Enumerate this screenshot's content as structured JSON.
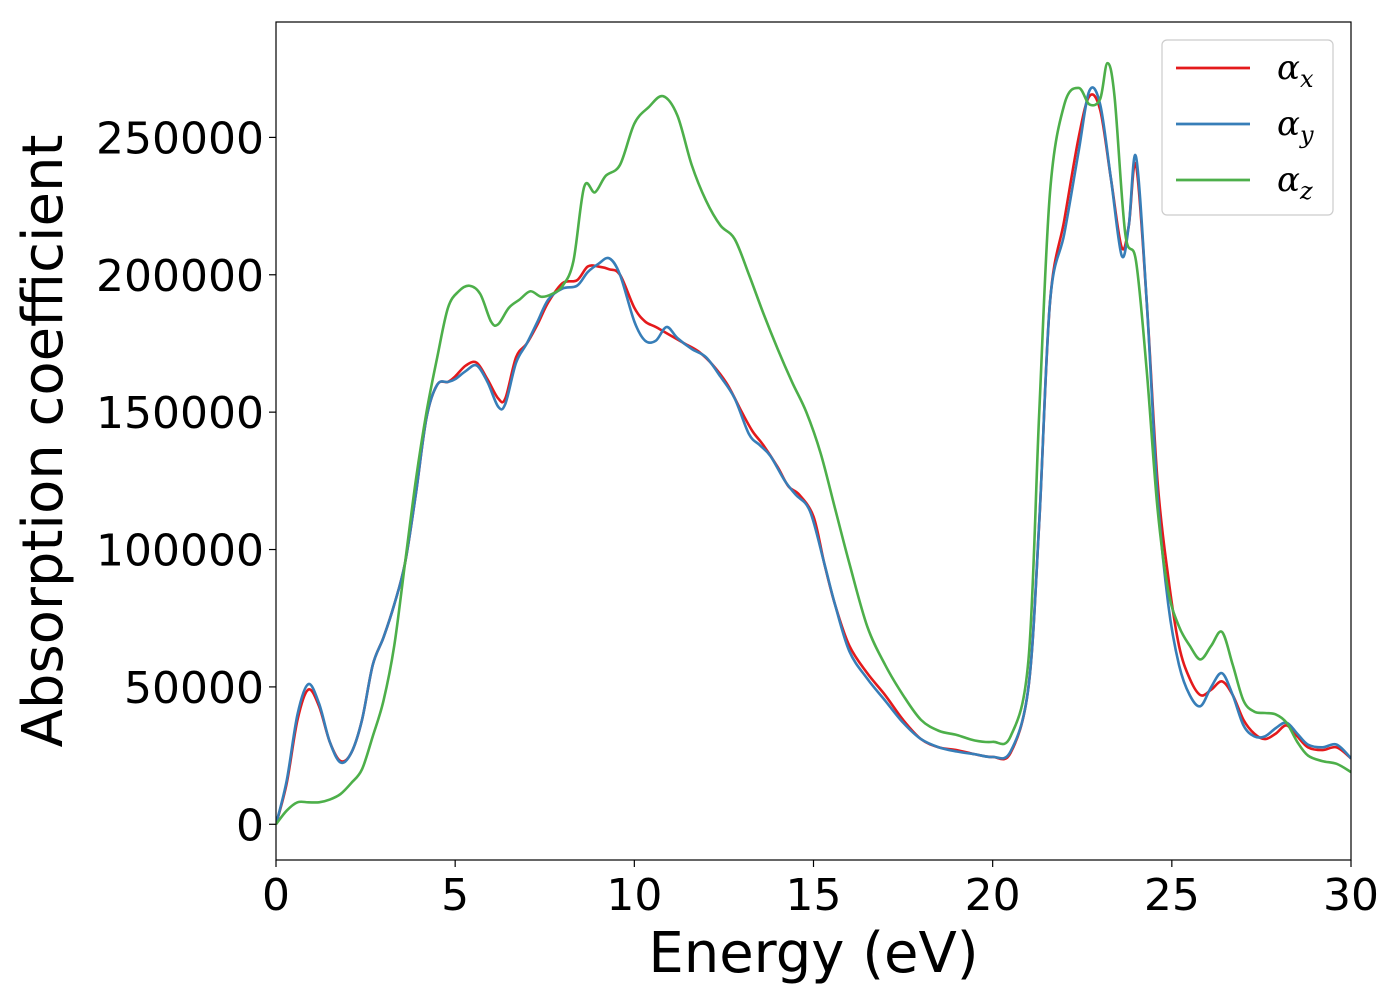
{
  "chart_data": {
    "type": "line",
    "xlabel": "Energy (eV)",
    "ylabel": "Absorption coefficient",
    "xlim": [
      0,
      30
    ],
    "ylim": [
      -13000,
      292000
    ],
    "xticks": [
      0,
      5,
      10,
      15,
      20,
      25,
      30
    ],
    "yticks": [
      0,
      50000,
      100000,
      150000,
      200000,
      250000
    ],
    "grid": false,
    "legend_position": "top-right",
    "series": [
      {
        "name": "α",
        "subscript": "x",
        "color": "#e41a1c",
        "points": [
          [
            0,
            0
          ],
          [
            0.3,
            15000
          ],
          [
            0.6,
            38000
          ],
          [
            0.9,
            49000
          ],
          [
            1.2,
            43000
          ],
          [
            1.5,
            30000
          ],
          [
            1.8,
            23000
          ],
          [
            2.1,
            26000
          ],
          [
            2.4,
            38000
          ],
          [
            2.7,
            58000
          ],
          [
            3.0,
            68000
          ],
          [
            3.3,
            80000
          ],
          [
            3.6,
            95000
          ],
          [
            3.9,
            120000
          ],
          [
            4.2,
            148000
          ],
          [
            4.5,
            160000
          ],
          [
            4.8,
            161000
          ],
          [
            5.0,
            163000
          ],
          [
            5.3,
            167000
          ],
          [
            5.6,
            168000
          ],
          [
            5.9,
            162000
          ],
          [
            6.2,
            155000
          ],
          [
            6.4,
            155000
          ],
          [
            6.7,
            170000
          ],
          [
            7.0,
            175000
          ],
          [
            7.3,
            182000
          ],
          [
            7.6,
            190000
          ],
          [
            8.0,
            197000
          ],
          [
            8.4,
            198000
          ],
          [
            8.7,
            203000
          ],
          [
            9.0,
            203000
          ],
          [
            9.3,
            202000
          ],
          [
            9.6,
            200000
          ],
          [
            10.0,
            188000
          ],
          [
            10.3,
            183000
          ],
          [
            10.6,
            181000
          ],
          [
            11.0,
            178000
          ],
          [
            11.4,
            175000
          ],
          [
            11.8,
            172000
          ],
          [
            12.2,
            167000
          ],
          [
            12.6,
            160000
          ],
          [
            13.0,
            150000
          ],
          [
            13.3,
            143000
          ],
          [
            13.6,
            138000
          ],
          [
            14.0,
            130000
          ],
          [
            14.3,
            123000
          ],
          [
            14.6,
            120000
          ],
          [
            15.0,
            112000
          ],
          [
            15.3,
            95000
          ],
          [
            15.6,
            80000
          ],
          [
            16.0,
            65000
          ],
          [
            16.5,
            55000
          ],
          [
            17.0,
            47000
          ],
          [
            17.5,
            38000
          ],
          [
            18.0,
            31000
          ],
          [
            18.5,
            28000
          ],
          [
            19.0,
            27000
          ],
          [
            19.5,
            25500
          ],
          [
            20.0,
            24500
          ],
          [
            20.5,
            26000
          ],
          [
            21.0,
            50000
          ],
          [
            21.3,
            110000
          ],
          [
            21.6,
            190000
          ],
          [
            22.0,
            220000
          ],
          [
            22.4,
            250000
          ],
          [
            22.7,
            265000
          ],
          [
            23.0,
            260000
          ],
          [
            23.3,
            235000
          ],
          [
            23.6,
            210000
          ],
          [
            23.8,
            218000
          ],
          [
            24.0,
            240000
          ],
          [
            24.3,
            190000
          ],
          [
            24.6,
            125000
          ],
          [
            24.9,
            90000
          ],
          [
            25.2,
            65000
          ],
          [
            25.5,
            53000
          ],
          [
            25.8,
            47000
          ],
          [
            26.1,
            49000
          ],
          [
            26.4,
            52000
          ],
          [
            26.7,
            47000
          ],
          [
            27.0,
            38000
          ],
          [
            27.3,
            33000
          ],
          [
            27.6,
            31000
          ],
          [
            27.9,
            33000
          ],
          [
            28.2,
            36000
          ],
          [
            28.5,
            32000
          ],
          [
            28.8,
            28000
          ],
          [
            29.2,
            27000
          ],
          [
            29.6,
            28000
          ],
          [
            30.0,
            24000
          ]
        ]
      },
      {
        "name": "α",
        "subscript": "y",
        "color": "#377eb8",
        "points": [
          [
            0,
            0
          ],
          [
            0.3,
            16000
          ],
          [
            0.6,
            40000
          ],
          [
            0.9,
            51000
          ],
          [
            1.2,
            44000
          ],
          [
            1.5,
            30000
          ],
          [
            1.8,
            22500
          ],
          [
            2.1,
            26000
          ],
          [
            2.4,
            38000
          ],
          [
            2.7,
            58000
          ],
          [
            3.0,
            68000
          ],
          [
            3.3,
            80000
          ],
          [
            3.6,
            95000
          ],
          [
            3.9,
            120000
          ],
          [
            4.2,
            148000
          ],
          [
            4.5,
            160000
          ],
          [
            4.8,
            161000
          ],
          [
            5.0,
            162000
          ],
          [
            5.3,
            165000
          ],
          [
            5.6,
            167000
          ],
          [
            5.9,
            161000
          ],
          [
            6.2,
            152000
          ],
          [
            6.4,
            153000
          ],
          [
            6.7,
            168000
          ],
          [
            7.0,
            175000
          ],
          [
            7.3,
            183000
          ],
          [
            7.6,
            191000
          ],
          [
            8.0,
            195000
          ],
          [
            8.4,
            196000
          ],
          [
            8.7,
            201000
          ],
          [
            9.0,
            204000
          ],
          [
            9.3,
            206000
          ],
          [
            9.6,
            200000
          ],
          [
            10.0,
            183000
          ],
          [
            10.3,
            176000
          ],
          [
            10.6,
            176000
          ],
          [
            10.9,
            181000
          ],
          [
            11.2,
            177000
          ],
          [
            11.6,
            173000
          ],
          [
            12.0,
            170000
          ],
          [
            12.4,
            163000
          ],
          [
            12.8,
            155000
          ],
          [
            13.2,
            142000
          ],
          [
            13.5,
            138000
          ],
          [
            13.8,
            134000
          ],
          [
            14.2,
            125000
          ],
          [
            14.5,
            120000
          ],
          [
            14.9,
            114000
          ],
          [
            15.3,
            95000
          ],
          [
            15.6,
            80000
          ],
          [
            16.0,
            63000
          ],
          [
            16.5,
            53000
          ],
          [
            17.0,
            45000
          ],
          [
            17.5,
            37000
          ],
          [
            18.0,
            31000
          ],
          [
            18.5,
            28000
          ],
          [
            19.0,
            26500
          ],
          [
            19.5,
            25500
          ],
          [
            20.0,
            24500
          ],
          [
            20.5,
            26500
          ],
          [
            21.0,
            50000
          ],
          [
            21.3,
            110000
          ],
          [
            21.6,
            190000
          ],
          [
            22.0,
            215000
          ],
          [
            22.4,
            245000
          ],
          [
            22.7,
            267000
          ],
          [
            23.0,
            262000
          ],
          [
            23.3,
            235000
          ],
          [
            23.6,
            207000
          ],
          [
            23.8,
            218000
          ],
          [
            24.0,
            243000
          ],
          [
            24.3,
            190000
          ],
          [
            24.6,
            120000
          ],
          [
            24.9,
            80000
          ],
          [
            25.2,
            58000
          ],
          [
            25.5,
            47000
          ],
          [
            25.8,
            43000
          ],
          [
            26.1,
            50000
          ],
          [
            26.4,
            55000
          ],
          [
            26.7,
            47000
          ],
          [
            27.0,
            36000
          ],
          [
            27.3,
            32000
          ],
          [
            27.6,
            32000
          ],
          [
            27.9,
            35000
          ],
          [
            28.2,
            37000
          ],
          [
            28.5,
            33000
          ],
          [
            28.8,
            29000
          ],
          [
            29.2,
            28000
          ],
          [
            29.6,
            29000
          ],
          [
            30.0,
            24000
          ]
        ]
      },
      {
        "name": "α",
        "subscript": "z",
        "color": "#4daf4a",
        "points": [
          [
            0,
            0
          ],
          [
            0.3,
            5000
          ],
          [
            0.6,
            8000
          ],
          [
            0.9,
            8000
          ],
          [
            1.2,
            8000
          ],
          [
            1.5,
            9000
          ],
          [
            1.8,
            11000
          ],
          [
            2.1,
            15000
          ],
          [
            2.4,
            20000
          ],
          [
            2.7,
            32000
          ],
          [
            3.0,
            45000
          ],
          [
            3.3,
            65000
          ],
          [
            3.6,
            95000
          ],
          [
            3.9,
            125000
          ],
          [
            4.2,
            150000
          ],
          [
            4.5,
            170000
          ],
          [
            4.8,
            188000
          ],
          [
            5.1,
            194000
          ],
          [
            5.4,
            196000
          ],
          [
            5.7,
            193000
          ],
          [
            6.0,
            183000
          ],
          [
            6.2,
            182000
          ],
          [
            6.5,
            188000
          ],
          [
            6.8,
            191000
          ],
          [
            7.1,
            194000
          ],
          [
            7.4,
            192000
          ],
          [
            7.7,
            193000
          ],
          [
            8.0,
            196000
          ],
          [
            8.3,
            205000
          ],
          [
            8.6,
            232000
          ],
          [
            8.9,
            230000
          ],
          [
            9.2,
            236000
          ],
          [
            9.6,
            240000
          ],
          [
            10.0,
            255000
          ],
          [
            10.4,
            261000
          ],
          [
            10.8,
            265000
          ],
          [
            11.2,
            258000
          ],
          [
            11.6,
            240000
          ],
          [
            12.0,
            227000
          ],
          [
            12.4,
            218000
          ],
          [
            12.8,
            213000
          ],
          [
            13.2,
            200000
          ],
          [
            13.6,
            186000
          ],
          [
            14.0,
            173000
          ],
          [
            14.4,
            161000
          ],
          [
            14.8,
            150000
          ],
          [
            15.2,
            135000
          ],
          [
            15.6,
            115000
          ],
          [
            16.0,
            95000
          ],
          [
            16.5,
            72000
          ],
          [
            17.0,
            58000
          ],
          [
            17.5,
            47000
          ],
          [
            18.0,
            38000
          ],
          [
            18.5,
            34000
          ],
          [
            19.0,
            32500
          ],
          [
            19.5,
            30500
          ],
          [
            20.0,
            30000
          ],
          [
            20.5,
            32000
          ],
          [
            21.0,
            60000
          ],
          [
            21.3,
            150000
          ],
          [
            21.6,
            230000
          ],
          [
            22.0,
            262000
          ],
          [
            22.4,
            268000
          ],
          [
            22.7,
            262000
          ],
          [
            23.0,
            264000
          ],
          [
            23.2,
            277000
          ],
          [
            23.4,
            265000
          ],
          [
            23.7,
            215000
          ],
          [
            24.0,
            205000
          ],
          [
            24.3,
            165000
          ],
          [
            24.6,
            115000
          ],
          [
            24.9,
            85000
          ],
          [
            25.2,
            72000
          ],
          [
            25.5,
            65000
          ],
          [
            25.8,
            60000
          ],
          [
            26.1,
            65000
          ],
          [
            26.4,
            70000
          ],
          [
            26.7,
            58000
          ],
          [
            27.0,
            45000
          ],
          [
            27.3,
            41000
          ],
          [
            27.6,
            40500
          ],
          [
            27.9,
            40000
          ],
          [
            28.2,
            37000
          ],
          [
            28.5,
            30000
          ],
          [
            28.8,
            25000
          ],
          [
            29.2,
            23000
          ],
          [
            29.6,
            22000
          ],
          [
            30.0,
            19000
          ]
        ]
      }
    ]
  }
}
